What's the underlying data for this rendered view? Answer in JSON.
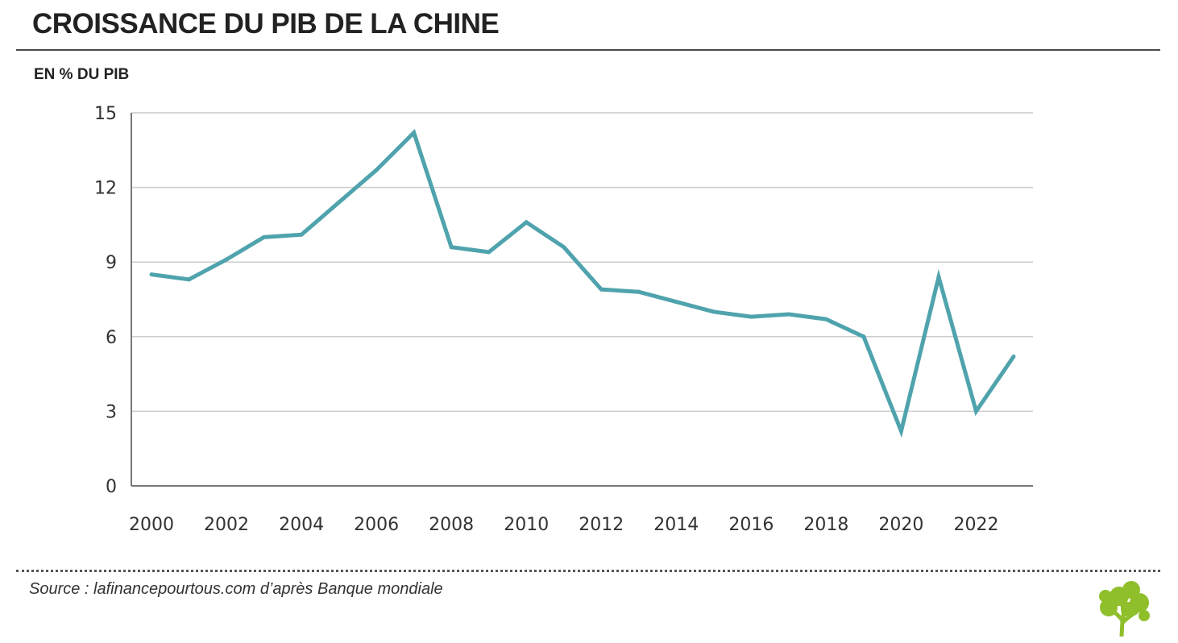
{
  "header": {
    "title": "CROISSANCE DU PIB DE LA CHINE",
    "unit_label": "EN % DU PIB"
  },
  "footer": {
    "source": "Source : lafinancepourtous.com d’après Banque mondiale",
    "logo_icon": "tree-logo-icon"
  },
  "colors": {
    "line": "#4fa3ad",
    "grid": "#cccccc",
    "axis": "#777777",
    "logo": "#8fbf2a"
  },
  "chart_data": {
    "type": "line",
    "title": "CROISSANCE DU PIB DE LA CHINE",
    "ylabel": "EN % DU PIB",
    "xlabel": "",
    "x": [
      2000,
      2001,
      2002,
      2003,
      2004,
      2005,
      2006,
      2007,
      2008,
      2009,
      2010,
      2011,
      2012,
      2013,
      2014,
      2015,
      2016,
      2017,
      2018,
      2019,
      2020,
      2021,
      2022,
      2023
    ],
    "series": [
      {
        "name": "Croissance du PIB",
        "values": [
          8.5,
          8.3,
          9.1,
          10.0,
          10.1,
          11.4,
          12.7,
          14.2,
          9.6,
          9.4,
          10.6,
          9.6,
          7.9,
          7.8,
          7.4,
          7.0,
          6.8,
          6.9,
          6.7,
          6.0,
          2.2,
          8.4,
          3.0,
          5.2
        ]
      }
    ],
    "x_tick_labels": [
      "2000",
      "2002",
      "2004",
      "2006",
      "2008",
      "2010",
      "2012",
      "2014",
      "2016",
      "2018",
      "2020",
      "2022"
    ],
    "y_ticks": [
      0,
      3,
      6,
      9,
      12,
      15
    ],
    "ylim": [
      0,
      15
    ],
    "xlim": [
      2000,
      2023
    ],
    "grid": true,
    "legend": "none"
  }
}
